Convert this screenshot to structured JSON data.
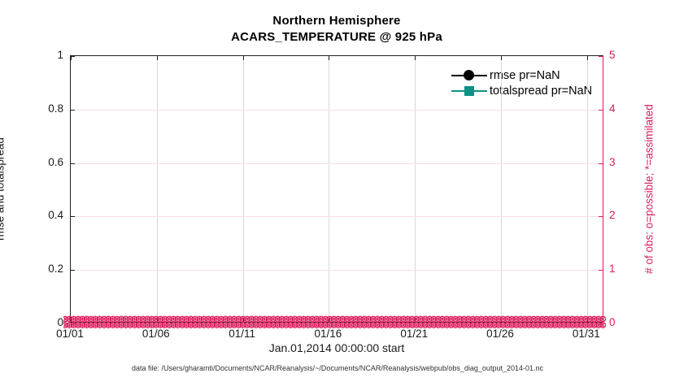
{
  "title": {
    "line1": "Northern Hemisphere",
    "line2": "ACARS_TEMPERATURE @ 925 hPa"
  },
  "chart_data": {
    "type": "line",
    "title": "Northern Hemisphere / ACARS_TEMPERATURE @ 925 hPa",
    "xlabel": "Jan.01,2014 00:00:00 start",
    "ylabel_left": "rmse and totalspread",
    "ylabel_right": "# of obs: o=possible; *=assimilated",
    "x_ticks": [
      "01/01",
      "01/06",
      "01/11",
      "01/16",
      "01/21",
      "01/26",
      "01/31"
    ],
    "x_range_days": 31,
    "x_tick_interval_days": 5,
    "y_left_ticks": [
      "0",
      "0.2",
      "0.4",
      "0.6",
      "0.8",
      "1"
    ],
    "y_right_ticks": [
      "0",
      "1",
      "2",
      "3",
      "4",
      "5"
    ],
    "ylim_left": [
      0,
      1
    ],
    "ylim_right": [
      0,
      5
    ],
    "grid": true,
    "legend_position": "top-right-inside",
    "series": [
      {
        "name": "rmse pr=NaN",
        "marker": "circle",
        "color": "#000000",
        "values": "all NaN - no curve drawn"
      },
      {
        "name": "totalspread pr=NaN",
        "marker": "square",
        "color": "#0E9187",
        "values": "all NaN - no curve drawn"
      },
      {
        "name": "# of obs possible (o)",
        "marker": "o",
        "color": "#DB1C5C",
        "axis": "right",
        "constant_value": 0,
        "n_points": 124
      },
      {
        "name": "# of obs assimilated (*)",
        "marker": "*",
        "color": "#DB1C5C",
        "axis": "right",
        "constant_value": 0,
        "n_points": 124
      }
    ]
  },
  "legend": {
    "items": [
      {
        "label": "rmse pr=NaN",
        "marker": "circle",
        "color": "#000000"
      },
      {
        "label": "totalspread pr=NaN",
        "marker": "square",
        "color": "#0E9187"
      }
    ]
  },
  "footer": {
    "caption": "data file: /Users/gharamti/Documents/NCAR/Reanalysis/~/Documents/NCAR/Reanalysis/webpub/obs_diag_output_2014-01.nc"
  },
  "colors": {
    "accent_pink": "#DB1C5C",
    "teal": "#0E9187",
    "axis": "#1f1f1f",
    "grid_gray": "#d8d8d8",
    "grid_pink": "#f8dce6"
  }
}
